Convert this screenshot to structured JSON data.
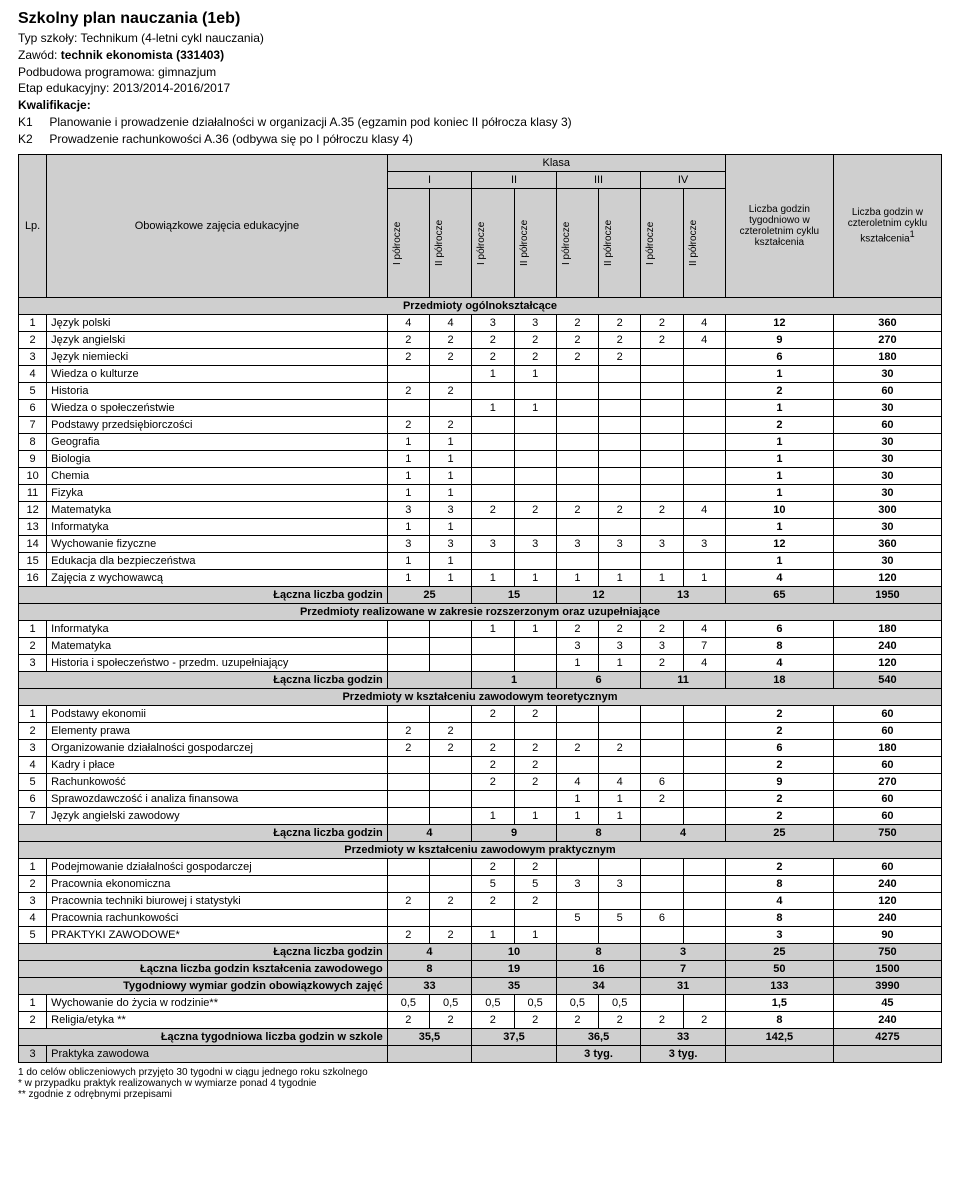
{
  "header": {
    "title": "Szkolny plan nauczania (1eb)",
    "school_type_label": "Typ szkoły:",
    "school_type": "Technikum (4-letni cykl nauczania)",
    "profession_label": "Zawód:",
    "profession": "technik ekonomista (331403)",
    "base_label": "Podbudowa programowa:",
    "base": "gimnazjum",
    "stage_label": "Etap edukacyjny:",
    "stage": "2013/2014-2016/2017",
    "qual_label": "Kwalifikacje:",
    "k1_code": "K1",
    "k1_text": "Planowanie i prowadzenie działalności w organizacji A.35 (egzamin pod koniec II półrocza klasy 3)",
    "k2_code": "K2",
    "k2_text": "Prowadzenie rachunkowości A.36 (odbywa się po I półroczu klasy 4)"
  },
  "table_head": {
    "lp": "Lp.",
    "subject": "Obowiązkowe zajęcia edukacyjne",
    "klasa": "Klasa",
    "classes": [
      "I",
      "II",
      "III",
      "IV"
    ],
    "sem1": "I półrocze",
    "sem2": "II półrocze",
    "weekly": "Liczba godzin tygodniowo w czteroletnim cyklu kształcenia",
    "total": "Liczba godzin w czteroletnim cyklu kształcenia",
    "total_sup": "1"
  },
  "sections": {
    "general": "Przedmioty ogólnokształcące",
    "extended": "Przedmioty realizowane w zakresie rozszerzonym oraz uzupełniające",
    "theory": "Przedmioty w kształceniu zawodowym teoretycznym",
    "practice": "Przedmioty w kształceniu zawodowym  praktycznym"
  },
  "general": [
    {
      "n": "1",
      "name": "Język polski",
      "c": [
        "4",
        "4",
        "3",
        "3",
        "2",
        "2",
        "2",
        "4"
      ],
      "w": "12",
      "t": "360"
    },
    {
      "n": "2",
      "name": "Język angielski",
      "c": [
        "2",
        "2",
        "2",
        "2",
        "2",
        "2",
        "2",
        "4"
      ],
      "w": "9",
      "t": "270"
    },
    {
      "n": "3",
      "name": "Język niemiecki",
      "c": [
        "2",
        "2",
        "2",
        "2",
        "2",
        "2",
        "",
        ""
      ],
      "w": "6",
      "t": "180"
    },
    {
      "n": "4",
      "name": "Wiedza o kulturze",
      "c": [
        "",
        "",
        "1",
        "1",
        "",
        "",
        "",
        ""
      ],
      "w": "1",
      "t": "30"
    },
    {
      "n": "5",
      "name": "Historia",
      "c": [
        "2",
        "2",
        "",
        "",
        "",
        "",
        "",
        ""
      ],
      "w": "2",
      "t": "60"
    },
    {
      "n": "6",
      "name": "Wiedza o społeczeństwie",
      "c": [
        "",
        "",
        "1",
        "1",
        "",
        "",
        "",
        ""
      ],
      "w": "1",
      "t": "30"
    },
    {
      "n": "7",
      "name": "Podstawy przedsiębiorczości",
      "c": [
        "2",
        "2",
        "",
        "",
        "",
        "",
        "",
        ""
      ],
      "w": "2",
      "t": "60"
    },
    {
      "n": "8",
      "name": "Geografia",
      "c": [
        "1",
        "1",
        "",
        "",
        "",
        "",
        "",
        ""
      ],
      "w": "1",
      "t": "30"
    },
    {
      "n": "9",
      "name": "Biologia",
      "c": [
        "1",
        "1",
        "",
        "",
        "",
        "",
        "",
        ""
      ],
      "w": "1",
      "t": "30"
    },
    {
      "n": "10",
      "name": "Chemia",
      "c": [
        "1",
        "1",
        "",
        "",
        "",
        "",
        "",
        ""
      ],
      "w": "1",
      "t": "30"
    },
    {
      "n": "11",
      "name": "Fizyka",
      "c": [
        "1",
        "1",
        "",
        "",
        "",
        "",
        "",
        ""
      ],
      "w": "1",
      "t": "30"
    },
    {
      "n": "12",
      "name": "Matematyka",
      "c": [
        "3",
        "3",
        "2",
        "2",
        "2",
        "2",
        "2",
        "4"
      ],
      "w": "10",
      "t": "300"
    },
    {
      "n": "13",
      "name": "Informatyka",
      "c": [
        "1",
        "1",
        "",
        "",
        "",
        "",
        "",
        ""
      ],
      "w": "1",
      "t": "30"
    },
    {
      "n": "14",
      "name": "Wychowanie fizyczne",
      "c": [
        "3",
        "3",
        "3",
        "3",
        "3",
        "3",
        "3",
        "3"
      ],
      "w": "12",
      "t": "360"
    },
    {
      "n": "15",
      "name": "Edukacja dla bezpieczeństwa",
      "c": [
        "1",
        "1",
        "",
        "",
        "",
        "",
        "",
        ""
      ],
      "w": "1",
      "t": "30"
    },
    {
      "n": "16",
      "name": "Zajęcia z wychowawcą",
      "c": [
        "1",
        "1",
        "1",
        "1",
        "1",
        "1",
        "1",
        "1"
      ],
      "w": "4",
      "t": "120"
    }
  ],
  "general_sum": {
    "label": "Łączna liczba godzin",
    "m": [
      "25",
      "15",
      "12",
      "13"
    ],
    "w": "65",
    "t": "1950"
  },
  "extended": [
    {
      "n": "1",
      "name": "Informatyka",
      "c": [
        "",
        "",
        "1",
        "1",
        "2",
        "2",
        "2",
        "4"
      ],
      "w": "6",
      "t": "180"
    },
    {
      "n": "2",
      "name": "Matematyka",
      "c": [
        "",
        "",
        "",
        "",
        "3",
        "3",
        "3",
        "7"
      ],
      "w": "8",
      "t": "240"
    },
    {
      "n": "3",
      "name": "Historia i społeczeństwo - przedm. uzupełniający",
      "c": [
        "",
        "",
        "",
        "",
        "1",
        "1",
        "2",
        "4"
      ],
      "w": "4",
      "t": "120"
    }
  ],
  "extended_sum": {
    "label": "Łączna liczba godzin",
    "m": [
      "",
      "1",
      "6",
      "11"
    ],
    "w": "18",
    "t": "540"
  },
  "theory": [
    {
      "n": "1",
      "name": "Podstawy ekonomii",
      "c": [
        "",
        "",
        "2",
        "2",
        "",
        "",
        "",
        ""
      ],
      "w": "2",
      "t": "60"
    },
    {
      "n": "2",
      "name": "Elementy prawa",
      "c": [
        "2",
        "2",
        "",
        "",
        "",
        "",
        "",
        ""
      ],
      "w": "2",
      "t": "60"
    },
    {
      "n": "3",
      "name": "Organizowanie działalności gospodarczej",
      "c": [
        "2",
        "2",
        "2",
        "2",
        "2",
        "2",
        "",
        ""
      ],
      "w": "6",
      "t": "180"
    },
    {
      "n": "4",
      "name": "Kadry i płace",
      "c": [
        "",
        "",
        "2",
        "2",
        "",
        "",
        "",
        ""
      ],
      "w": "2",
      "t": "60"
    },
    {
      "n": "5",
      "name": "Rachunkowość",
      "c": [
        "",
        "",
        "2",
        "2",
        "4",
        "4",
        "6",
        ""
      ],
      "w": "9",
      "t": "270"
    },
    {
      "n": "6",
      "name": "Sprawozdawczość i analiza finansowa",
      "c": [
        "",
        "",
        "",
        "",
        "1",
        "1",
        "2",
        ""
      ],
      "w": "2",
      "t": "60"
    },
    {
      "n": "7",
      "name": "Język angielski zawodowy",
      "c": [
        "",
        "",
        "1",
        "1",
        "1",
        "1",
        "",
        ""
      ],
      "w": "2",
      "t": "60"
    }
  ],
  "theory_sum": {
    "label": "Łączna liczba godzin",
    "m": [
      "4",
      "9",
      "8",
      "4"
    ],
    "w": "25",
    "t": "750"
  },
  "practice": [
    {
      "n": "1",
      "name": "Podejmowanie działalności gospodarczej",
      "c": [
        "",
        "",
        "2",
        "2",
        "",
        "",
        "",
        ""
      ],
      "w": "2",
      "t": "60"
    },
    {
      "n": "2",
      "name": "Pracownia ekonomiczna",
      "c": [
        "",
        "",
        "5",
        "5",
        "3",
        "3",
        "",
        ""
      ],
      "w": "8",
      "t": "240"
    },
    {
      "n": "3",
      "name": "Pracownia techniki biurowej i statystyki",
      "c": [
        "2",
        "2",
        "2",
        "2",
        "",
        "",
        "",
        ""
      ],
      "w": "4",
      "t": "120"
    },
    {
      "n": "4",
      "name": "Pracownia rachunkowości",
      "c": [
        "",
        "",
        "",
        "",
        "5",
        "5",
        "6",
        ""
      ],
      "w": "8",
      "t": "240"
    },
    {
      "n": "5",
      "name": "PRAKTYKI ZAWODOWE*",
      "c": [
        "2",
        "2",
        "1",
        "1",
        "",
        "",
        "",
        ""
      ],
      "w": "3",
      "t": "90"
    }
  ],
  "practice_sum": {
    "label": "Łączna liczba godzin",
    "m": [
      "4",
      "10",
      "8",
      "3"
    ],
    "w": "25",
    "t": "750"
  },
  "voc_total": {
    "label": "Łączna liczba godzin kształcenia zawodowego",
    "m": [
      "8",
      "19",
      "16",
      "7"
    ],
    "w": "50",
    "t": "1500"
  },
  "weekly_total": {
    "label": "Tygodniowy wymiar godzin obowiązkowych zajęć",
    "m": [
      "33",
      "35",
      "34",
      "31"
    ],
    "w": "133",
    "t": "3990"
  },
  "extra": [
    {
      "n": "1",
      "name": "Wychowanie do życia w rodzinie**",
      "c": [
        "0,5",
        "0,5",
        "0,5",
        "0,5",
        "0,5",
        "0,5",
        "",
        ""
      ],
      "w": "1,5",
      "t": "45"
    },
    {
      "n": "2",
      "name": "Religia/etyka **",
      "c": [
        "2",
        "2",
        "2",
        "2",
        "2",
        "2",
        "2",
        "2"
      ],
      "w": "8",
      "t": "240"
    }
  ],
  "school_total": {
    "label": "Łączna tygodniowa liczba godzin w szkole",
    "m": [
      "35,5",
      "37,5",
      "36,5",
      "33"
    ],
    "w": "142,5",
    "t": "4275"
  },
  "internship": {
    "n": "3",
    "name": "Praktyka zawodowa",
    "c": [
      "",
      "",
      "3 tyg.",
      "3 tyg."
    ]
  },
  "footnotes": [
    "1 do celów obliczeniowych przyjęto 30 tygodni w ciągu jednego roku szkolnego",
    "* w przypadku praktyk realizowanych w wymiarze ponad 4 tygodnie",
    "** zgodnie z odrębnymi przepisami"
  ]
}
